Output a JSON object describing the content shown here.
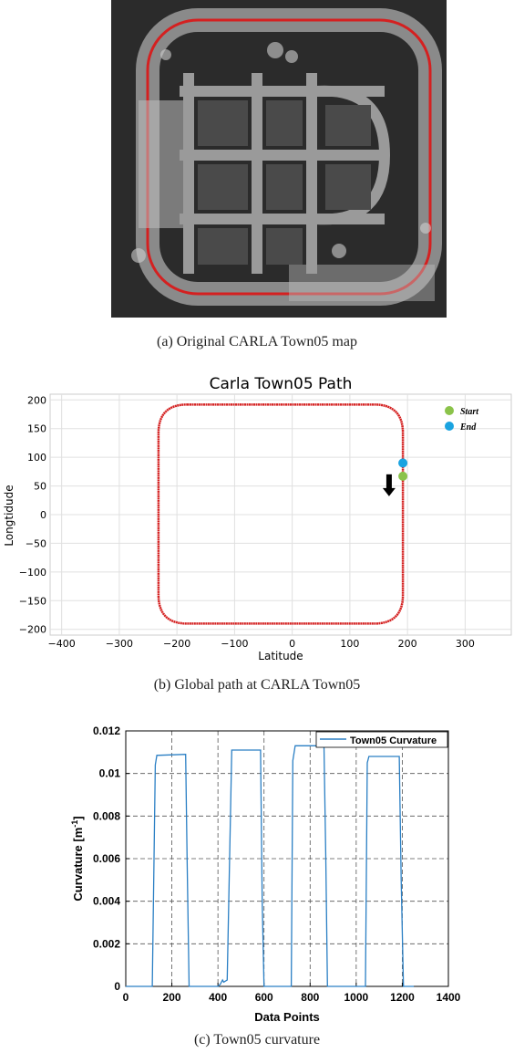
{
  "captions": {
    "a": "(a) Original CARLA Town05 map",
    "b": "(b) Global path at CARLA Town05",
    "c": "(c) Town05 curvature"
  },
  "colors": {
    "path_red": "#d42020",
    "start_green": "#8bc34a",
    "end_blue": "#1aa3e0",
    "curvature_blue": "#2a7fc4"
  },
  "chart_data": [
    {
      "type": "line",
      "title": "Carla Town05 Path",
      "xlabel": "Latitude",
      "ylabel": "Longtidude",
      "xlim": [
        -420,
        380
      ],
      "ylim": [
        -210,
        210
      ],
      "xticks": [
        -400,
        -300,
        -200,
        -100,
        0,
        100,
        200,
        300
      ],
      "yticks": [
        -200,
        -150,
        -100,
        -50,
        0,
        50,
        100,
        150,
        200
      ],
      "grid": true,
      "legend_position": "top-right",
      "series": [
        {
          "name": "",
          "type": "closed-path",
          "x_min": -232,
          "x_max": 192,
          "y_min": -190,
          "y_max": 192,
          "corner_radius": 50
        }
      ],
      "markers": [
        {
          "name": "Start",
          "x": 192,
          "y": 67
        },
        {
          "name": "End",
          "x": 192,
          "y": 90
        }
      ],
      "annotation": {
        "type": "arrow-down",
        "x": 168,
        "y": 48
      }
    },
    {
      "type": "line",
      "title": "",
      "xlabel": "Data Points",
      "ylabel": "Curvature [m^-1]",
      "xlim": [
        0,
        1400
      ],
      "ylim": [
        0,
        0.012
      ],
      "xticks": [
        0,
        200,
        400,
        600,
        800,
        1000,
        1200,
        1400
      ],
      "yticks": [
        0,
        0.002,
        0.004,
        0.006,
        0.008,
        0.01,
        0.012
      ],
      "ytick_labels": [
        "0",
        "0.002",
        "0.004",
        "0.006",
        "0.008",
        "0.01",
        "0.012"
      ],
      "grid": true,
      "legend_position": "top-right",
      "series": [
        {
          "name": "Town05 Curvature",
          "x": [
            0,
            115,
            128,
            135,
            260,
            266,
            275,
            400,
            410,
            420,
            425,
            440,
            460,
            585,
            592,
            600,
            718,
            725,
            735,
            860,
            868,
            875,
            1040,
            1048,
            1055,
            1187,
            1195,
            1205,
            1250
          ],
          "y": [
            0,
            0,
            0.0104,
            0.01085,
            0.0109,
            0.006,
            0,
            0,
            0.0001,
            0.0003,
            0.0002,
            0.0003,
            0.0111,
            0.0111,
            0.004,
            0,
            0,
            0.0106,
            0.0113,
            0.0113,
            0.006,
            0,
            0,
            0.0105,
            0.0108,
            0.0108,
            0.005,
            0,
            0
          ]
        }
      ]
    }
  ]
}
